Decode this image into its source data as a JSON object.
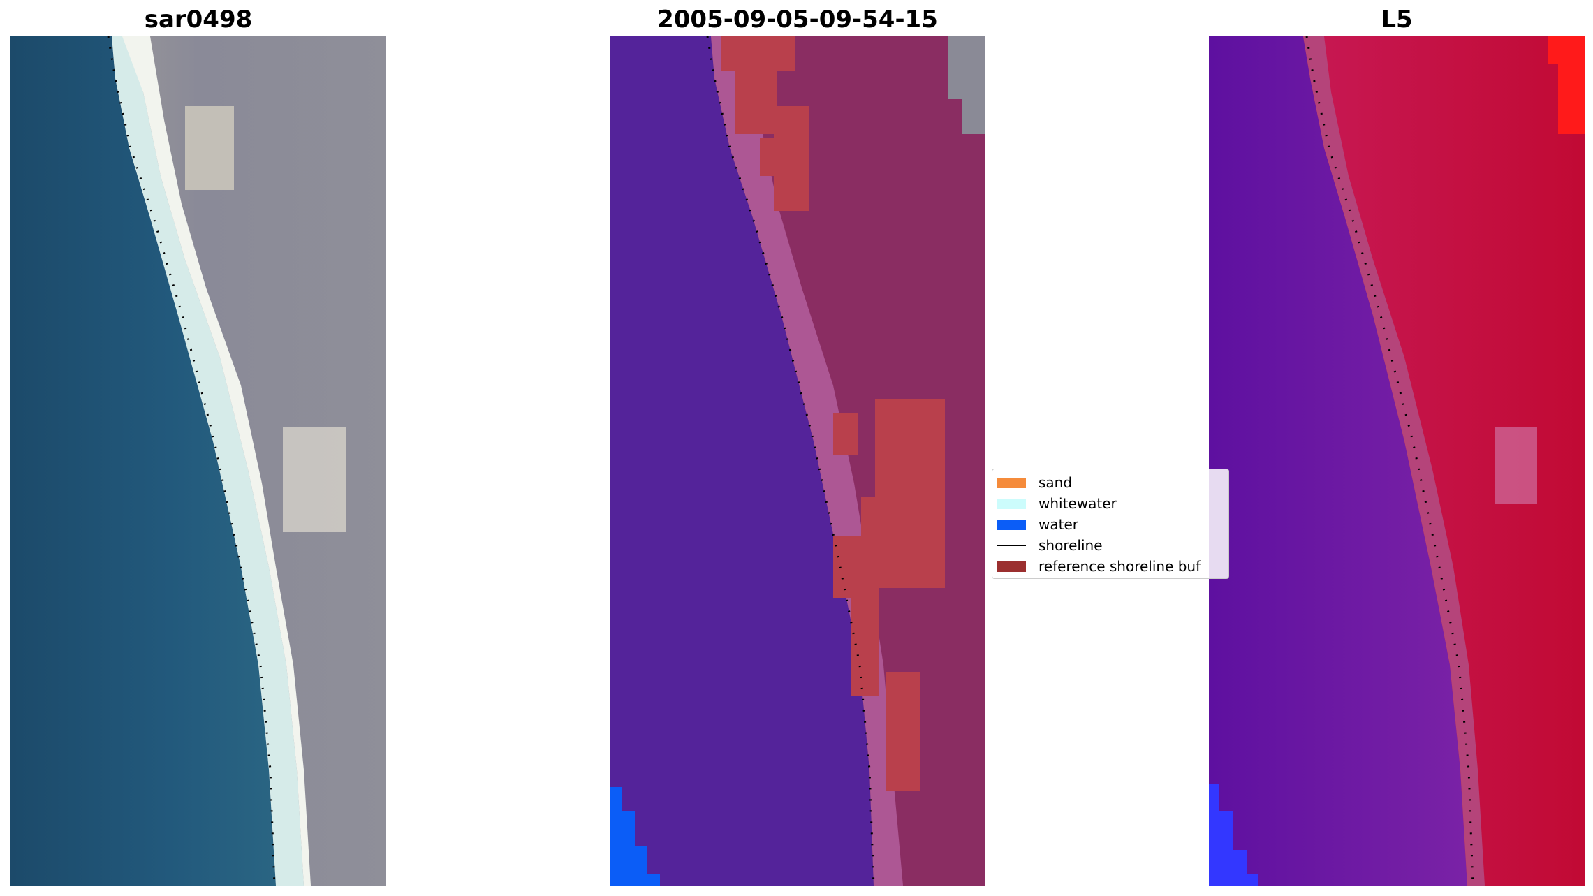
{
  "panels": [
    {
      "title": "sar0498"
    },
    {
      "title": "2005-09-05-09-54-15"
    },
    {
      "title": "L5"
    }
  ],
  "legend": {
    "items": [
      {
        "label": "sand",
        "color": "#f58b3b",
        "kind": "patch"
      },
      {
        "label": "whitewater",
        "color": "#ccfcfc",
        "kind": "patch"
      },
      {
        "label": "water",
        "color": "#0b5df7",
        "kind": "patch"
      },
      {
        "label": "shoreline",
        "color": "#000000",
        "kind": "line"
      },
      {
        "label": "reference shoreline buf",
        "color": "#9b2f2f",
        "kind": "patch"
      }
    ]
  },
  "colors": {
    "rgb_water": "#1f5a7e",
    "rgb_land": "#8a8a96",
    "class_background": "#54239a",
    "class_land": "#8a2d62",
    "class_buffer": "#b9404c",
    "mndwi_left": "#6b1aa8",
    "mndwi_right": "#c21046"
  }
}
